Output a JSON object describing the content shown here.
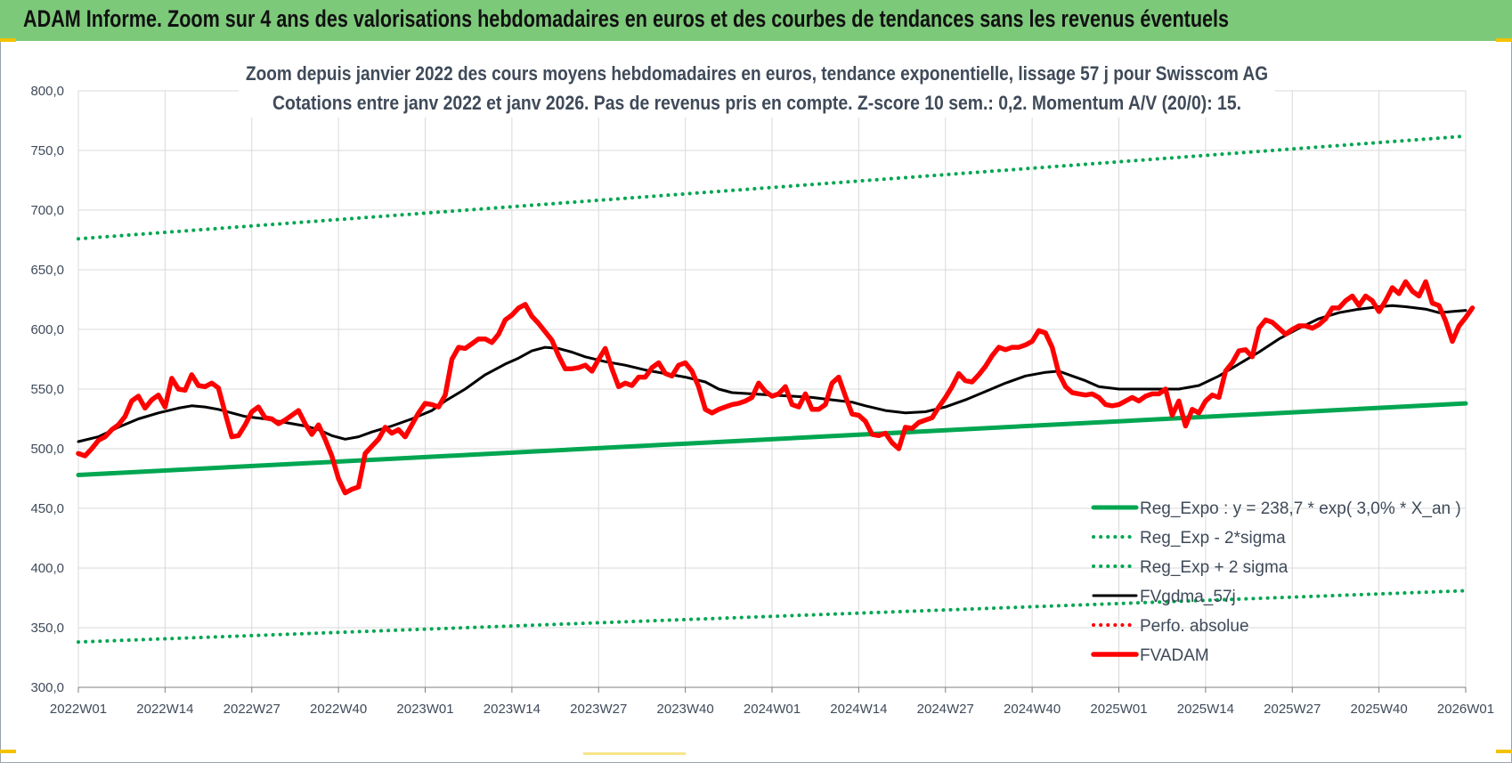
{
  "banner": {
    "title": "ADAM Informe. Zoom sur 4 ans des valorisations hebdomadaires en euros et des courbes de tendances sans les revenus éventuels",
    "color": "#7dc97a"
  },
  "chart_data": {
    "type": "line",
    "title_line1": "Zoom depuis janvier 2022 des cours moyens hebdomadaires en euros, tendance exponentielle, lissage 57 j pour Swisscom AG",
    "title_line2": "Cotations entre janv 2022 et janv 2026. Pas de revenus pris en compte. Z-score 10 sem.: 0,2. Momentum A/V (20/0):  15.",
    "ylim": [
      300,
      800
    ],
    "y_ticks": [
      "300,0",
      "350,0",
      "400,0",
      "450,0",
      "500,0",
      "550,0",
      "600,0",
      "650,0",
      "700,0",
      "750,0",
      "800,0"
    ],
    "x_range": [
      0,
      208
    ],
    "x_ticks": [
      {
        "label": "2022W01",
        "x": 0
      },
      {
        "label": "2022W14",
        "x": 13
      },
      {
        "label": "2022W27",
        "x": 26
      },
      {
        "label": "2022W40",
        "x": 39
      },
      {
        "label": "2023W01",
        "x": 52
      },
      {
        "label": "2023W14",
        "x": 65
      },
      {
        "label": "2023W27",
        "x": 78
      },
      {
        "label": "2023W40",
        "x": 91
      },
      {
        "label": "2024W01",
        "x": 104
      },
      {
        "label": "2024W14",
        "x": 117
      },
      {
        "label": "2024W27",
        "x": 130
      },
      {
        "label": "2024W40",
        "x": 143
      },
      {
        "label": "2025W01",
        "x": 156
      },
      {
        "label": "2025W14",
        "x": 169
      },
      {
        "label": "2025W27",
        "x": 182
      },
      {
        "label": "2025W40",
        "x": 195
      },
      {
        "label": "2026W01",
        "x": 208
      }
    ],
    "grid": true,
    "legend_position": "bottom-right",
    "series": [
      {
        "name": "Reg_Expo : y = 238,7 * exp( 3,0% *  X_an )",
        "color": "#00a651",
        "style": "solid-thick",
        "points": [
          [
            0,
            478
          ],
          [
            208,
            538
          ]
        ]
      },
      {
        "name": "Reg_Exp - 2*sigma",
        "color": "#00a651",
        "style": "dotted",
        "points": [
          [
            0,
            338
          ],
          [
            208,
            381
          ]
        ]
      },
      {
        "name": "Reg_Exp + 2 sigma",
        "color": "#00a651",
        "style": "dotted",
        "points": [
          [
            0,
            676
          ],
          [
            208,
            762
          ]
        ]
      },
      {
        "name": "FVgdma_57j",
        "color": "#000000",
        "style": "solid",
        "points": [
          [
            0,
            506
          ],
          [
            3,
            510
          ],
          [
            6,
            518
          ],
          [
            9,
            525
          ],
          [
            12,
            530
          ],
          [
            15,
            534
          ],
          [
            17,
            536
          ],
          [
            19,
            535
          ],
          [
            21,
            533
          ],
          [
            23,
            530
          ],
          [
            25,
            527
          ],
          [
            28,
            525
          ],
          [
            31,
            522
          ],
          [
            34,
            519
          ],
          [
            36,
            516
          ],
          [
            38,
            511
          ],
          [
            40,
            508
          ],
          [
            42,
            510
          ],
          [
            44,
            514
          ],
          [
            47,
            519
          ],
          [
            50,
            525
          ],
          [
            53,
            532
          ],
          [
            55,
            540
          ],
          [
            58,
            550
          ],
          [
            61,
            562
          ],
          [
            64,
            571
          ],
          [
            66,
            576
          ],
          [
            68,
            582
          ],
          [
            70,
            585
          ],
          [
            72,
            584
          ],
          [
            74,
            581
          ],
          [
            76,
            577
          ],
          [
            79,
            573
          ],
          [
            82,
            570
          ],
          [
            85,
            566
          ],
          [
            88,
            563
          ],
          [
            91,
            560
          ],
          [
            94,
            556
          ],
          [
            96,
            550
          ],
          [
            98,
            547
          ],
          [
            101,
            546
          ],
          [
            104,
            545
          ],
          [
            107,
            544
          ],
          [
            110,
            543
          ],
          [
            113,
            541
          ],
          [
            116,
            539
          ],
          [
            118,
            536
          ],
          [
            121,
            532
          ],
          [
            124,
            530
          ],
          [
            127,
            531
          ],
          [
            130,
            535
          ],
          [
            133,
            541
          ],
          [
            136,
            548
          ],
          [
            139,
            555
          ],
          [
            142,
            561
          ],
          [
            145,
            564
          ],
          [
            147,
            565
          ],
          [
            149,
            561
          ],
          [
            151,
            557
          ],
          [
            153,
            552
          ],
          [
            156,
            550
          ],
          [
            159,
            550
          ],
          [
            162,
            550
          ],
          [
            165,
            550
          ],
          [
            168,
            553
          ],
          [
            171,
            561
          ],
          [
            174,
            571
          ],
          [
            177,
            581
          ],
          [
            180,
            592
          ],
          [
            183,
            601
          ],
          [
            186,
            609
          ],
          [
            189,
            614
          ],
          [
            192,
            617
          ],
          [
            195,
            619
          ],
          [
            197,
            620
          ],
          [
            199,
            619
          ],
          [
            202,
            617
          ],
          [
            204,
            614
          ],
          [
            206,
            615
          ],
          [
            208,
            616
          ]
        ]
      },
      {
        "name": "Perfo. absolue",
        "color": "#ff0000",
        "style": "dotted",
        "points": []
      },
      {
        "name": "FVADAM",
        "color": "#ff0000",
        "style": "solid-thick",
        "points": [
          [
            0,
            496
          ],
          [
            1,
            494
          ],
          [
            2,
            500
          ],
          [
            3,
            507
          ],
          [
            4,
            510
          ],
          [
            5,
            516
          ],
          [
            6,
            520
          ],
          [
            7,
            527
          ],
          [
            8,
            540
          ],
          [
            9,
            544
          ],
          [
            10,
            534
          ],
          [
            11,
            541
          ],
          [
            12,
            545
          ],
          [
            13,
            535
          ],
          [
            14,
            559
          ],
          [
            15,
            550
          ],
          [
            16,
            549
          ],
          [
            17,
            562
          ],
          [
            18,
            553
          ],
          [
            19,
            552
          ],
          [
            20,
            555
          ],
          [
            21,
            551
          ],
          [
            22,
            530
          ],
          [
            23,
            510
          ],
          [
            24,
            511
          ],
          [
            25,
            520
          ],
          [
            26,
            531
          ],
          [
            27,
            535
          ],
          [
            28,
            526
          ],
          [
            29,
            525
          ],
          [
            30,
            521
          ],
          [
            31,
            524
          ],
          [
            32,
            528
          ],
          [
            33,
            532
          ],
          [
            34,
            521
          ],
          [
            35,
            512
          ],
          [
            36,
            520
          ],
          [
            37,
            508
          ],
          [
            38,
            494
          ],
          [
            39,
            475
          ],
          [
            40,
            463
          ],
          [
            41,
            466
          ],
          [
            42,
            468
          ],
          [
            43,
            496
          ],
          [
            44,
            502
          ],
          [
            45,
            508
          ],
          [
            46,
            518
          ],
          [
            47,
            513
          ],
          [
            48,
            516
          ],
          [
            49,
            510
          ],
          [
            50,
            520
          ],
          [
            51,
            530
          ],
          [
            52,
            538
          ],
          [
            53,
            537
          ],
          [
            54,
            535
          ],
          [
            55,
            545
          ],
          [
            56,
            575
          ],
          [
            57,
            585
          ],
          [
            58,
            584
          ],
          [
            59,
            588
          ],
          [
            60,
            592
          ],
          [
            61,
            592
          ],
          [
            62,
            589
          ],
          [
            63,
            596
          ],
          [
            64,
            608
          ],
          [
            65,
            612
          ],
          [
            66,
            618
          ],
          [
            67,
            621
          ],
          [
            68,
            611
          ],
          [
            69,
            605
          ],
          [
            70,
            598
          ],
          [
            71,
            591
          ],
          [
            72,
            578
          ],
          [
            73,
            567
          ],
          [
            74,
            567
          ],
          [
            75,
            568
          ],
          [
            76,
            570
          ],
          [
            77,
            565
          ],
          [
            78,
            575
          ],
          [
            79,
            584
          ],
          [
            80,
            567
          ],
          [
            81,
            552
          ],
          [
            82,
            555
          ],
          [
            83,
            553
          ],
          [
            84,
            560
          ],
          [
            85,
            560
          ],
          [
            86,
            568
          ],
          [
            87,
            572
          ],
          [
            88,
            563
          ],
          [
            89,
            561
          ],
          [
            90,
            570
          ],
          [
            91,
            572
          ],
          [
            92,
            565
          ],
          [
            93,
            552
          ],
          [
            94,
            533
          ],
          [
            95,
            530
          ],
          [
            96,
            533
          ],
          [
            97,
            535
          ],
          [
            98,
            537
          ],
          [
            99,
            538
          ],
          [
            100,
            540
          ],
          [
            101,
            543
          ],
          [
            102,
            555
          ],
          [
            103,
            548
          ],
          [
            104,
            544
          ],
          [
            105,
            546
          ],
          [
            106,
            552
          ],
          [
            107,
            537
          ],
          [
            108,
            535
          ],
          [
            109,
            546
          ],
          [
            110,
            533
          ],
          [
            111,
            533
          ],
          [
            112,
            537
          ],
          [
            113,
            555
          ],
          [
            114,
            560
          ],
          [
            115,
            544
          ],
          [
            116,
            529
          ],
          [
            117,
            528
          ],
          [
            118,
            523
          ],
          [
            119,
            512
          ],
          [
            120,
            511
          ],
          [
            121,
            513
          ],
          [
            122,
            505
          ],
          [
            123,
            500
          ],
          [
            124,
            518
          ],
          [
            125,
            517
          ],
          [
            126,
            522
          ],
          [
            127,
            524
          ],
          [
            128,
            526
          ],
          [
            129,
            535
          ],
          [
            130,
            543
          ],
          [
            131,
            552
          ],
          [
            132,
            563
          ],
          [
            133,
            557
          ],
          [
            134,
            556
          ],
          [
            135,
            562
          ],
          [
            136,
            569
          ],
          [
            137,
            578
          ],
          [
            138,
            585
          ],
          [
            139,
            583
          ],
          [
            140,
            585
          ],
          [
            141,
            585
          ],
          [
            142,
            587
          ],
          [
            143,
            590
          ],
          [
            144,
            599
          ],
          [
            145,
            597
          ],
          [
            146,
            585
          ],
          [
            147,
            563
          ],
          [
            148,
            552
          ],
          [
            149,
            547
          ],
          [
            150,
            546
          ],
          [
            151,
            545
          ],
          [
            152,
            546
          ],
          [
            153,
            543
          ],
          [
            154,
            537
          ],
          [
            155,
            536
          ],
          [
            156,
            537
          ],
          [
            157,
            540
          ],
          [
            158,
            543
          ],
          [
            159,
            540
          ],
          [
            160,
            544
          ],
          [
            161,
            546
          ],
          [
            162,
            546
          ],
          [
            163,
            550
          ],
          [
            164,
            528
          ],
          [
            165,
            540
          ],
          [
            166,
            519
          ],
          [
            167,
            533
          ],
          [
            168,
            530
          ],
          [
            169,
            540
          ],
          [
            170,
            545
          ],
          [
            171,
            543
          ],
          [
            172,
            565
          ],
          [
            173,
            572
          ],
          [
            174,
            582
          ],
          [
            175,
            583
          ],
          [
            176,
            577
          ],
          [
            177,
            601
          ],
          [
            178,
            608
          ],
          [
            179,
            606
          ],
          [
            180,
            601
          ],
          [
            181,
            596
          ],
          [
            182,
            600
          ],
          [
            183,
            603
          ],
          [
            184,
            603
          ],
          [
            185,
            601
          ],
          [
            186,
            604
          ],
          [
            187,
            609
          ],
          [
            188,
            618
          ],
          [
            189,
            618
          ],
          [
            190,
            624
          ],
          [
            191,
            628
          ],
          [
            192,
            620
          ],
          [
            193,
            628
          ],
          [
            194,
            624
          ],
          [
            195,
            615
          ],
          [
            196,
            624
          ],
          [
            197,
            635
          ],
          [
            198,
            630
          ],
          [
            199,
            640
          ],
          [
            200,
            632
          ],
          [
            201,
            628
          ],
          [
            202,
            640
          ],
          [
            203,
            622
          ],
          [
            204,
            620
          ],
          [
            205,
            607
          ],
          [
            206,
            590
          ],
          [
            207,
            603
          ],
          [
            208,
            610
          ],
          [
            209,
            618
          ]
        ]
      }
    ]
  }
}
